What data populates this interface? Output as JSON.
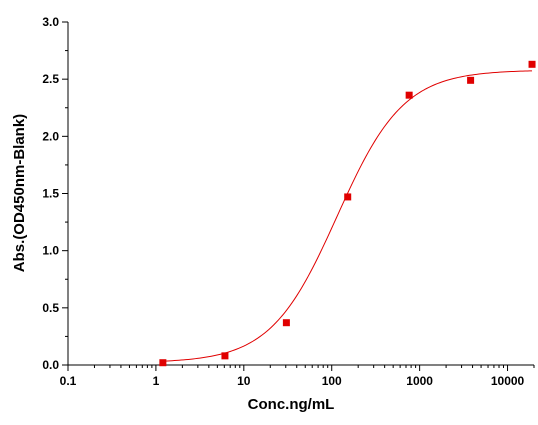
{
  "chart_data": {
    "type": "scatter",
    "title": "",
    "xlabel": "Conc.ng/mL",
    "ylabel": "Abs.(OD450nm-Blank)",
    "x_scale": "log",
    "xlim": [
      0.1,
      20000
    ],
    "ylim": [
      0,
      3.0
    ],
    "x_ticks": [
      0.1,
      1,
      10,
      100,
      1000,
      10000
    ],
    "x_tick_labels": [
      "0.1",
      "1",
      "10",
      "100",
      "1000",
      "10000"
    ],
    "y_ticks": [
      0,
      0.5,
      1.0,
      1.5,
      2.0,
      2.5,
      3.0
    ],
    "y_tick_labels": [
      "0.0",
      "0.5",
      "1.0",
      "1.5",
      "2.0",
      "2.5",
      "3.0"
    ],
    "grid": false,
    "legend": "none",
    "series": [
      {
        "type": "scatter",
        "marker": "square",
        "color": "#e00000",
        "x": [
          1.2,
          6.1,
          30.5,
          152,
          760,
          3800,
          19000
        ],
        "y": [
          0.02,
          0.08,
          0.37,
          1.47,
          2.36,
          2.49,
          2.63
        ]
      },
      {
        "type": "line",
        "color": "#e00000",
        "fit": "4PL",
        "fit_params": {
          "bottom": 0.02,
          "top": 2.58,
          "ec50": 115,
          "hill": 1.15
        },
        "x_range": [
          1.2,
          19000
        ]
      }
    ]
  }
}
